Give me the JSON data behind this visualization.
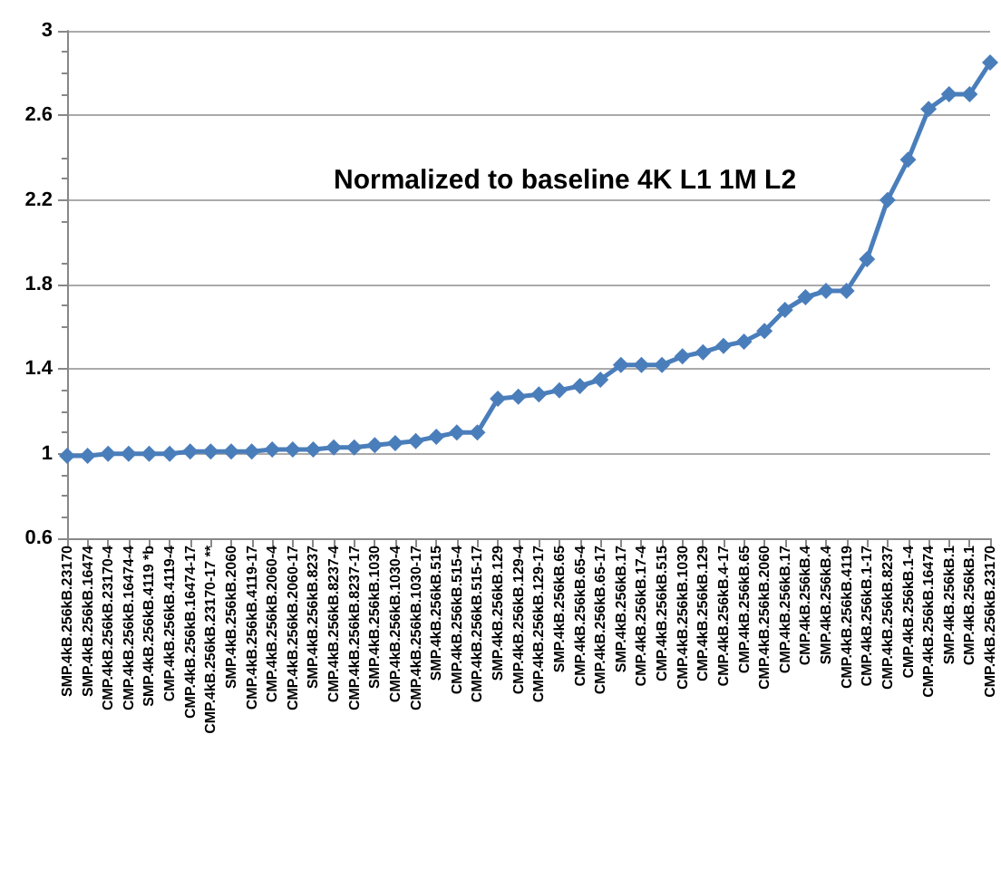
{
  "chart_data": {
    "type": "line",
    "title": "Normalized to baseline 4K L1 1M L2",
    "categories": [
      "SMP.4kB.256kB.23170",
      "SMP.4kB.256kB.16474",
      "CMP.4kB.256kB.23170-4",
      "CMP.4kB.256kB.16474-4",
      "SMP.4kB.256kB.4119 *b",
      "CMP.4kB.256kB.4119-4",
      "CMP.4kB.256kB.16474-17",
      "CMP.4kB.256kB.23170-17 **",
      "SMP.4kB.256kB.2060",
      "CMP.4kB.256kB.4119-17",
      "CMP.4kB.256kB.2060-4",
      "CMP.4kB.256kB.2060-17",
      "SMP.4kB.256kB.8237",
      "CMP.4kB.256kB.8237-4",
      "CMP.4kB.256kB.8237-17",
      "SMP.4kB.256kB.1030",
      "CMP.4kB.256kB.1030-4",
      "CMP.4kB.256kB.1030-17",
      "SMP.4kB.256kB.515",
      "CMP.4kB.256kB.515-4",
      "CMP.4kB.256kB.515-17",
      "SMP.4kB.256kB.129",
      "CMP.4kB.256kB.129-4",
      "CMP.4kB.256kB.129-17",
      "SMP.4kB.256kB.65",
      "CMP.4kB.256kB.65-4",
      "CMP.4kB.256kB.65-17",
      "SMP.4kB.256kB.17",
      "CMP.4kB.256kB.17-4",
      "CMP.4kB.256kB.515",
      "CMP.4kB.256kB.1030",
      "CMP.4kB.256kB.129",
      "CMP.4kB.256kB.4-17",
      "CMP.4kB.256kB.65",
      "CMP.4kB.256kB.2060",
      "CMP.4kB.256kB.17",
      "CMP.4kB.256kB.4",
      "SMP.4kB.256kB.4",
      "CMP.4kB.256kB.4119",
      "CMP.4kB.256kB.1-17",
      "CMP.4kB.256kB.8237",
      "CMP.4kB.256kB.1-4",
      "CMP.4kB.256kB.16474",
      "SMP.4kB.256kB.1",
      "CMP.4kB.256kB.1",
      "CMP.4kB.256kB.23170"
    ],
    "series": [
      {
        "color": "#4a7ebb",
        "values": [
          0.99,
          0.99,
          1.0,
          1.0,
          1.0,
          1.0,
          1.01,
          1.01,
          1.01,
          1.01,
          1.02,
          1.02,
          1.02,
          1.03,
          1.03,
          1.04,
          1.05,
          1.06,
          1.08,
          1.1,
          1.1,
          1.26,
          1.27,
          1.28,
          1.3,
          1.32,
          1.35,
          1.42,
          1.42,
          1.42,
          1.46,
          1.48,
          1.51,
          1.53,
          1.58,
          1.68,
          1.74,
          1.77,
          1.77,
          1.92,
          2.2,
          2.39,
          2.63,
          2.7,
          2.7,
          2.85
        ]
      }
    ],
    "ylim": [
      0.6,
      3
    ],
    "yticks": [
      0.6,
      1,
      1.4,
      1.8,
      2.2,
      2.6,
      3
    ],
    "grid": "y",
    "marker": "diamond",
    "line_style": "solid"
  }
}
